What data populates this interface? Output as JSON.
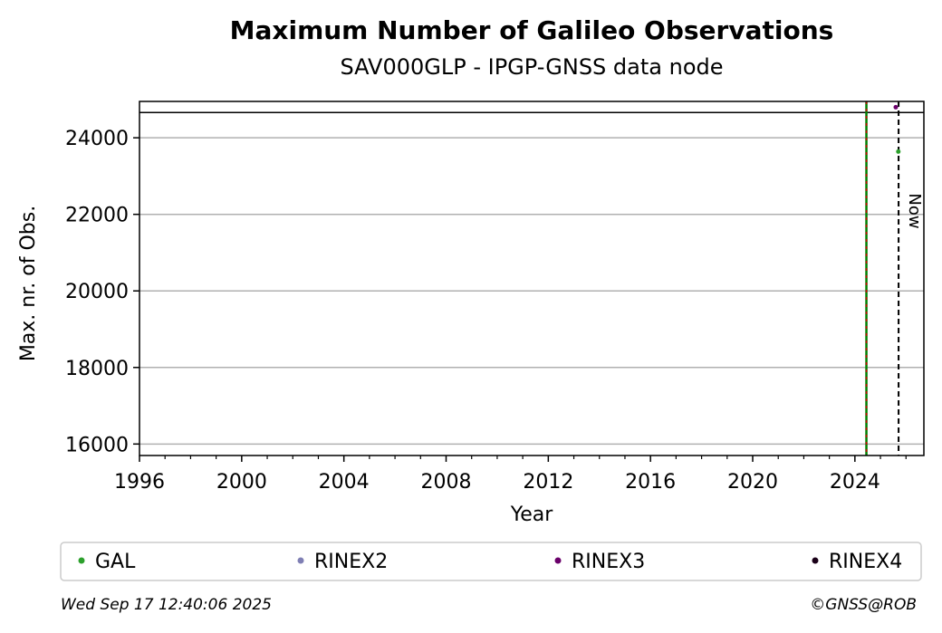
{
  "chart_data": {
    "type": "scatter",
    "title": "Maximum Number of Galileo Observations",
    "subtitle": "SAV000GLP - IPGP-GNSS data node",
    "xlabel": "Year",
    "ylabel": "Max. nr. of Obs.",
    "xlim": [
      1996,
      2026.7
    ],
    "ylim": [
      15700,
      24950
    ],
    "x_ticks": [
      1996,
      2000,
      2004,
      2008,
      2012,
      2016,
      2020,
      2024
    ],
    "y_ticks": [
      16000,
      18000,
      20000,
      22000,
      24000
    ],
    "grid": "horizontal",
    "series": [
      {
        "name": "GAL",
        "color": "#2ca02c",
        "points": [
          [
            2025.7,
            23640
          ]
        ]
      },
      {
        "name": "RINEX2",
        "color": "#7f7fb4",
        "points": []
      },
      {
        "name": "RINEX3",
        "color": "#6a006a",
        "points": [
          [
            2025.6,
            24800
          ]
        ]
      },
      {
        "name": "RINEX4",
        "color": "#1a0018",
        "points": []
      }
    ],
    "reference_lines": {
      "horizontal_y": 24660,
      "event_year": 2024.45,
      "event_colors": [
        "#008000",
        "#cc0000"
      ],
      "now_year": 2025.71,
      "now_label": "Now"
    },
    "legend_placement": "bottom"
  },
  "footer": {
    "timestamp": "Wed Sep 17 12:40:06 2025",
    "credit": "©GNSS@ROB"
  }
}
